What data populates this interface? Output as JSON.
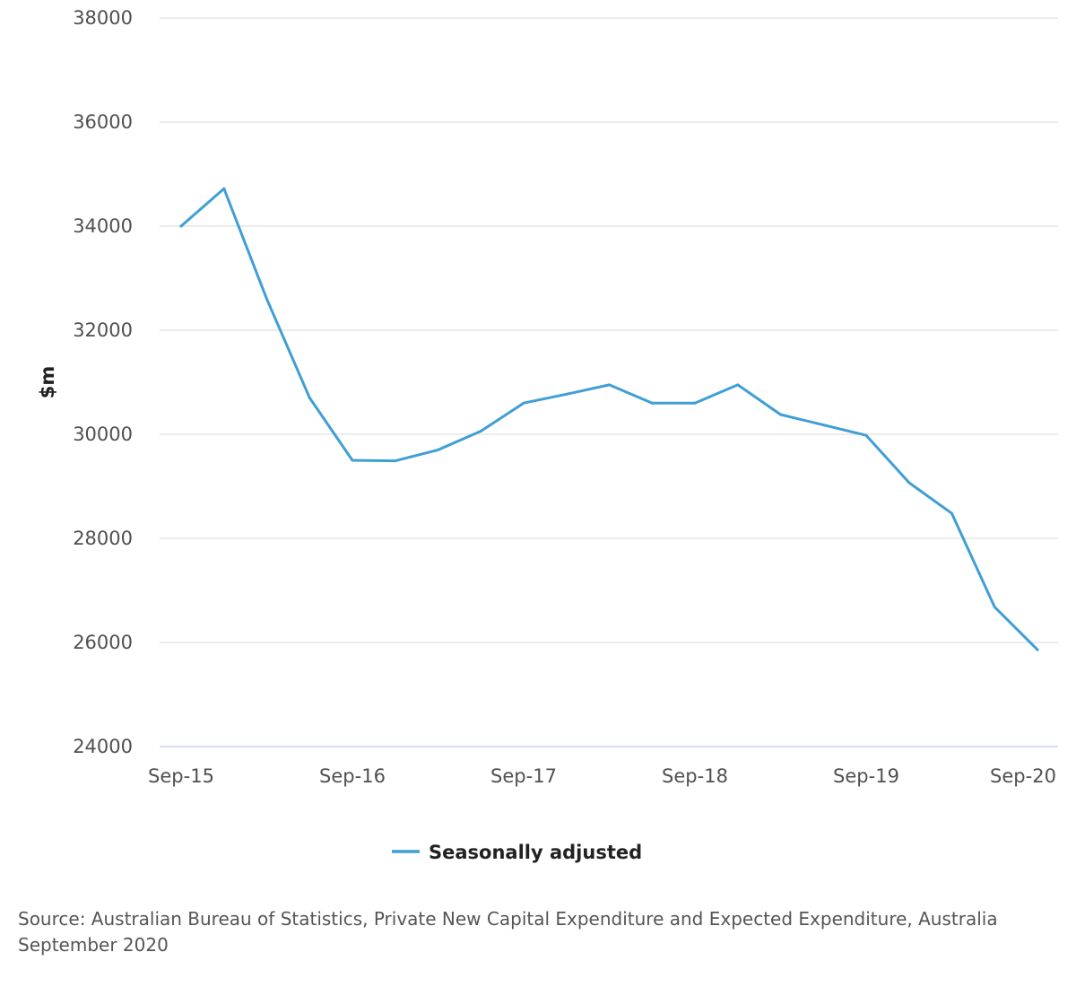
{
  "colors": {
    "series": "#3f9fd5",
    "grid": "#d9d9d9",
    "axis": "#c8d4ec",
    "tick_text": "#505050"
  },
  "chart_data": {
    "type": "line",
    "title": "",
    "xlabel": "",
    "ylabel": "$m",
    "ylim": [
      24000,
      38000
    ],
    "yticks": [
      24000,
      26000,
      28000,
      30000,
      32000,
      34000,
      36000,
      38000
    ],
    "ytick_labels": [
      "24000",
      "26000",
      "28000",
      "30000",
      "32000",
      "34000",
      "36000",
      "38000"
    ],
    "x": [
      "Sep-15",
      "Dec-15",
      "Mar-16",
      "Jun-16",
      "Sep-16",
      "Dec-16",
      "Mar-17",
      "Jun-17",
      "Sep-17",
      "Dec-17",
      "Mar-18",
      "Jun-18",
      "Sep-18",
      "Dec-18",
      "Mar-19",
      "Jun-19",
      "Sep-19",
      "Dec-19",
      "Mar-20",
      "Jun-20",
      "Sep-20"
    ],
    "xtick_labels": [
      "Sep-15",
      "Sep-16",
      "Sep-17",
      "Sep-18",
      "Sep-19",
      "Sep-20"
    ],
    "series": [
      {
        "name": "Seasonally adjusted",
        "values": [
          34000,
          34720,
          32600,
          30700,
          29500,
          29490,
          29700,
          30060,
          30600,
          30770,
          30950,
          30600,
          30600,
          30950,
          30380,
          30180,
          29980,
          29070,
          28480,
          26680,
          25860
        ]
      }
    ],
    "legend": {
      "position": "bottom-center"
    }
  },
  "source": {
    "text": "Source: Australian Bureau of Statistics, Private New Capital Expenditure and Expected Expenditure, Australia September 2020"
  }
}
